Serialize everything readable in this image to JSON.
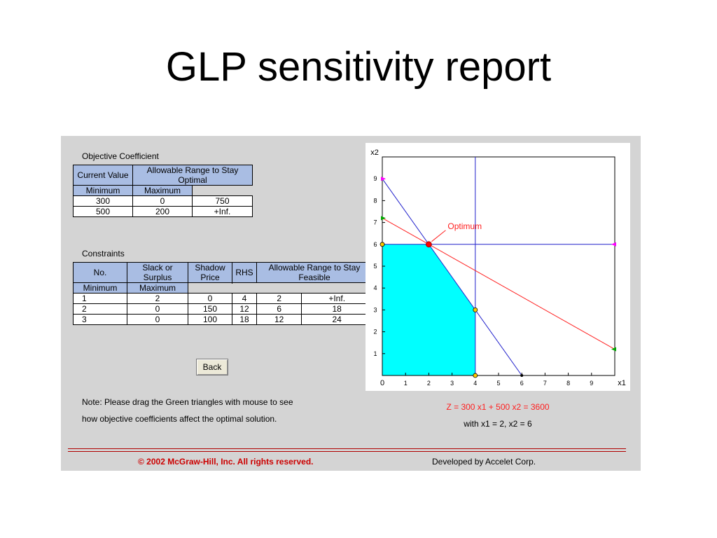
{
  "slide_title": "GLP sensitivity report",
  "objective": {
    "section_label": "Objective Coefficient",
    "headers": {
      "current_value": "Current Value",
      "allowable_range": "Allowable Range to Stay Optimal",
      "minimum": "Minimum",
      "maximum": "Maximum"
    },
    "rows": [
      {
        "current": "300",
        "min": "0",
        "max": "750"
      },
      {
        "current": "500",
        "min": "200",
        "max": "+Inf."
      }
    ]
  },
  "constraints": {
    "section_label": "Constraints",
    "headers": {
      "no": "No.",
      "slack": "Slack or Surplus",
      "shadow": "Shadow Price",
      "rhs": "RHS",
      "allowable_range": "Allowable Range to Stay Feasible",
      "minimum": "Minimum",
      "maximum": "Maximum"
    },
    "rows": [
      {
        "no": "1",
        "slack": "2",
        "shadow": "0",
        "rhs": "4",
        "min": "2",
        "max": "+Inf."
      },
      {
        "no": "2",
        "slack": "0",
        "shadow": "150",
        "rhs": "12",
        "min": "6",
        "max": "18"
      },
      {
        "no": "3",
        "slack": "0",
        "shadow": "100",
        "rhs": "18",
        "min": "12",
        "max": "24"
      }
    ]
  },
  "back_button_label": "Back",
  "note": {
    "line1": "Note: Please drag the Green triangles with mouse to see",
    "line2": "how objective coefficients affect the optimal solution."
  },
  "graph": {
    "x_axis_label": "x1",
    "y_axis_label": "x2",
    "x_ticks": [
      "0",
      "1",
      "2",
      "3",
      "4",
      "5",
      "6",
      "7",
      "8",
      "9"
    ],
    "y_ticks": [
      "1",
      "2",
      "3",
      "4",
      "5",
      "6",
      "7",
      "8",
      "9"
    ],
    "x_range": [
      0,
      10
    ],
    "y_range": [
      0,
      10
    ],
    "feasible_region": [
      [
        0,
        0
      ],
      [
        0,
        6
      ],
      [
        2,
        6
      ],
      [
        4,
        3
      ],
      [
        4,
        0
      ]
    ],
    "constraint_lines": [
      {
        "name": "x1 = 4",
        "from": [
          4,
          0
        ],
        "to": [
          4,
          10
        ]
      },
      {
        "name": "x2 = 6",
        "from": [
          0,
          6
        ],
        "to": [
          10,
          6
        ]
      },
      {
        "name": "3x1 + 2x2 = 18",
        "from": [
          0,
          9
        ],
        "to": [
          6,
          0
        ]
      }
    ],
    "objective_line": {
      "from": [
        0,
        7.2
      ],
      "to": [
        10,
        1.2
      ]
    },
    "optimum_point": [
      2,
      6
    ],
    "optimum_label": "Optimum",
    "vertices": [
      [
        0,
        6
      ],
      [
        4,
        3
      ],
      [
        4,
        0
      ]
    ],
    "colors": {
      "feasible_fill": "#00ffff",
      "constraint": "#2222cc",
      "objective": "#ff2020",
      "optimum": "#ff0000",
      "vertex": "#ffcc00",
      "handle_green": "#00aa00",
      "handle_magenta": "#ff00ff"
    }
  },
  "result": {
    "equation": "Z = 300 x1 + 500 x2 = 3600",
    "solution": "with x1 = 2, x2 = 6"
  },
  "footer": {
    "copyright": "© 2002 McGraw-Hill, Inc. All rights reserved.",
    "developer": "Developed by Accelet Corp."
  }
}
